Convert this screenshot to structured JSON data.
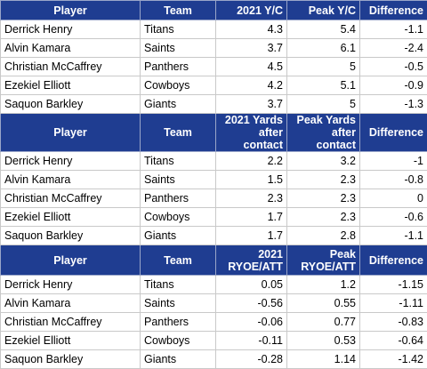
{
  "sections": [
    {
      "headers": {
        "player": "Player",
        "team": "Team",
        "a": "2021 Y/C",
        "b": "Peak Y/C",
        "diff": "Difference"
      },
      "rows": [
        {
          "player": "Derrick Henry",
          "team": "Titans",
          "a": "4.3",
          "b": "5.4",
          "diff": "-1.1"
        },
        {
          "player": "Alvin Kamara",
          "team": "Saints",
          "a": "3.7",
          "b": "6.1",
          "diff": "-2.4"
        },
        {
          "player": "Christian McCaffrey",
          "team": "Panthers",
          "a": "4.5",
          "b": "5",
          "diff": "-0.5"
        },
        {
          "player": "Ezekiel Elliott",
          "team": "Cowboys",
          "a": "4.2",
          "b": "5.1",
          "diff": "-0.9"
        },
        {
          "player": "Saquon Barkley",
          "team": "Giants",
          "a": "3.7",
          "b": "5",
          "diff": "-1.3"
        }
      ]
    },
    {
      "headers": {
        "player": "Player",
        "team": "Team",
        "a": "2021 Yards after contact",
        "b": "Peak Yards after contact",
        "diff": "Difference"
      },
      "rows": [
        {
          "player": "Derrick Henry",
          "team": "Titans",
          "a": "2.2",
          "b": "3.2",
          "diff": "-1"
        },
        {
          "player": "Alvin Kamara",
          "team": "Saints",
          "a": "1.5",
          "b": "2.3",
          "diff": "-0.8"
        },
        {
          "player": "Christian McCaffrey",
          "team": "Panthers",
          "a": "2.3",
          "b": "2.3",
          "diff": "0"
        },
        {
          "player": "Ezekiel Elliott",
          "team": "Cowboys",
          "a": "1.7",
          "b": "2.3",
          "diff": "-0.6"
        },
        {
          "player": "Saquon Barkley",
          "team": "Giants",
          "a": "1.7",
          "b": "2.8",
          "diff": "-1.1"
        }
      ]
    },
    {
      "headers": {
        "player": "Player",
        "team": "Team",
        "a": "2021 RYOE/ATT",
        "b": "Peak RYOE/ATT",
        "diff": "Difference"
      },
      "rows": [
        {
          "player": "Derrick Henry",
          "team": "Titans",
          "a": "0.05",
          "b": "1.2",
          "diff": "-1.15"
        },
        {
          "player": "Alvin Kamara",
          "team": "Saints",
          "a": "-0.56",
          "b": "0.55",
          "diff": "-1.11"
        },
        {
          "player": "Christian McCaffrey",
          "team": "Panthers",
          "a": "-0.06",
          "b": "0.77",
          "diff": "-0.83"
        },
        {
          "player": "Ezekiel Elliott",
          "team": "Cowboys",
          "a": "-0.11",
          "b": "0.53",
          "diff": "-0.64"
        },
        {
          "player": "Saquon Barkley",
          "team": "Giants",
          "a": "-0.28",
          "b": "1.14",
          "diff": "-1.42"
        }
      ]
    }
  ],
  "colors": {
    "header_bg": "#1f3d91",
    "header_text": "#ffffff",
    "grid": "#c9c9c9"
  }
}
